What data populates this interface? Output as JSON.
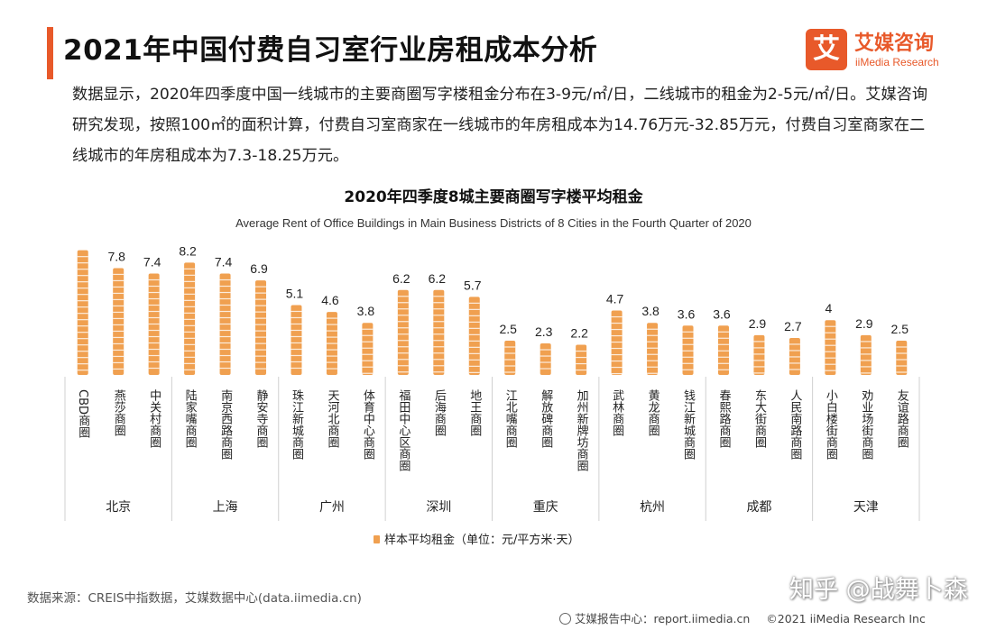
{
  "header": {
    "title": "2021年中国付费自习室行业房租成本分析",
    "logo_mark": "艾",
    "logo_cn": "艾媒咨询",
    "logo_en": "iiMedia Research"
  },
  "intro": "数据显示，2020年四季度中国一线城市的主要商圈写字楼租金分布在3-9元/㎡/日，二线城市的租金为2-5元/㎡/日。艾媒咨询研究发现，按照100㎡的面积计算，付费自习室商家在一线城市的年房租成本为14.76万元-32.85万元，付费自习室商家在二线城市的年房租成本为7.3-18.25万元。",
  "chart_data": {
    "type": "bar",
    "title": "2020年四季度8城主要商圈写字楼平均租金",
    "subtitle": "Average Rent of Office Buildings in Main Business Districts of 8 Cities in the Fourth Quarter of 2020",
    "legend": "样本平均租金（单位：元/平方米·天）",
    "legend_position": "bottom",
    "bar_color": "#f0a050",
    "groups": [
      {
        "city": "北京",
        "districts": [
          {
            "name": "CBD商圈",
            "value": 9.1
          },
          {
            "name": "燕莎商圈",
            "value": 7.8
          },
          {
            "name": "中关村商圈",
            "value": 7.4
          }
        ]
      },
      {
        "city": "上海",
        "districts": [
          {
            "name": "陆家嘴商圈",
            "value": 8.2
          },
          {
            "name": "南京西路商圈",
            "value": 7.4
          },
          {
            "name": "静安寺商圈",
            "value": 6.9
          }
        ]
      },
      {
        "city": "广州",
        "districts": [
          {
            "name": "珠江新城商圈",
            "value": 5.1
          },
          {
            "name": "天河北商圈",
            "value": 4.6
          },
          {
            "name": "体育中心商圈",
            "value": 3.8
          }
        ]
      },
      {
        "city": "深圳",
        "districts": [
          {
            "name": "福田中心区商圈",
            "value": 6.2
          },
          {
            "name": "后海商圈",
            "value": 6.2
          },
          {
            "name": "地王商圈",
            "value": 5.7
          }
        ]
      },
      {
        "city": "重庆",
        "districts": [
          {
            "name": "江北嘴商圈",
            "value": 2.5
          },
          {
            "name": "解放碑商圈",
            "value": 2.3
          },
          {
            "name": "加州新牌坊商圈",
            "value": 2.2
          }
        ]
      },
      {
        "city": "杭州",
        "districts": [
          {
            "name": "武林商圈",
            "value": 4.7
          },
          {
            "name": "黄龙商圈",
            "value": 3.8
          },
          {
            "name": "钱江新城商圈",
            "value": 3.6
          }
        ]
      },
      {
        "city": "成都",
        "districts": [
          {
            "name": "春熙路商圈",
            "value": 3.6
          },
          {
            "name": "东大街商圈",
            "value": 2.9
          },
          {
            "name": "人民南路商圈",
            "value": 2.7
          }
        ]
      },
      {
        "city": "天津",
        "districts": [
          {
            "name": "小白楼街商圈",
            "value": 4
          },
          {
            "name": "劝业场街商圈",
            "value": 2.9
          },
          {
            "name": "友谊路商圈",
            "value": 2.5
          }
        ]
      }
    ]
  },
  "source": "数据来源：CREIS中指数据，艾媒数据中心(data.iimedia.cn)",
  "footer": {
    "report_site": "艾媒报告中心：report.iimedia.cn",
    "copyright": "©2021  iiMedia Research  Inc"
  },
  "watermark": "知乎 @战舞卜森"
}
